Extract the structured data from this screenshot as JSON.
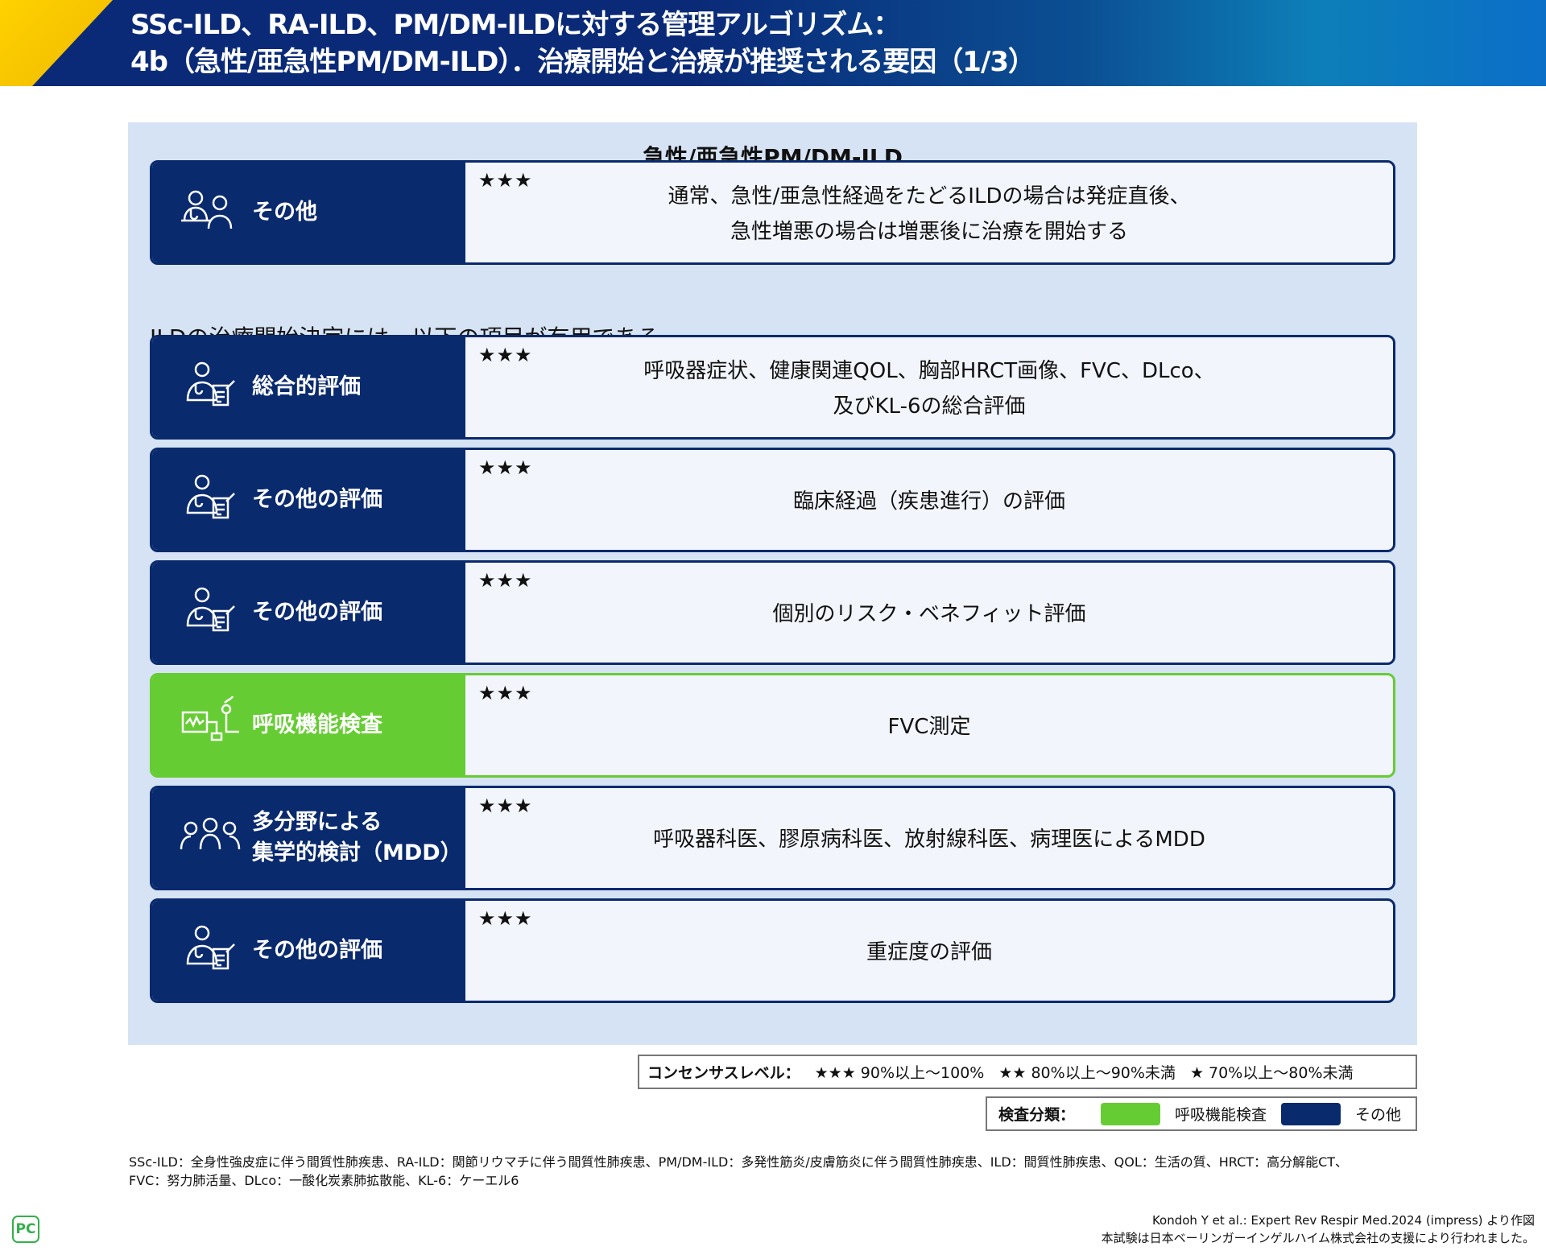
{
  "header": {
    "title_line1": "SSc-ILD、RA-ILD、PM/DM-ILDに対する管理アルゴリズム：",
    "title_line2": "4b（急性/亜急性PM/DM-ILD）．治療開始と治療が推奨される要因（1/3）"
  },
  "panel": {
    "title": "急性/亜急性PM/DM-ILD",
    "subtitle": "ILDの治療開始決定には、以下の項目が有用である"
  },
  "rows": [
    {
      "label": "その他",
      "stars": "★★★",
      "desc_line1": "通常、急性/亜急性経過をたどるILDの場合は発症直後、",
      "desc_line2": "急性増悪の場合は増悪後に治療を開始する",
      "icon": "doctor-patient-icon",
      "category": "other"
    },
    {
      "label": "総合的評価",
      "stars": "★★★",
      "desc_line1": "呼吸器症状、健康関連QOL、胸部HRCT画像、FVC、DLco、",
      "desc_line2": "及びKL-6の総合評価",
      "icon": "doctor-clipboard-icon",
      "category": "other"
    },
    {
      "label": "その他の評価",
      "stars": "★★★",
      "desc_line1": "臨床経過（疾患進行）の評価",
      "desc_line2": "",
      "icon": "doctor-clipboard-icon",
      "category": "other"
    },
    {
      "label": "その他の評価",
      "stars": "★★★",
      "desc_line1": "個別のリスク・ベネフィット評価",
      "desc_line2": "",
      "icon": "doctor-clipboard-icon",
      "category": "other"
    },
    {
      "label": "呼吸機能検査",
      "stars": "★★★",
      "desc_line1": "FVC測定",
      "desc_line2": "",
      "icon": "spirometer-icon",
      "category": "pulmonary-function"
    },
    {
      "label": "多分野による集学的検討（MDD）",
      "label_line1": "多分野による",
      "label_line2": "集学的検討（MDD）",
      "stars": "★★★",
      "desc_line1": "呼吸器科医、膠原病科医、放射線科医、病理医によるMDD",
      "desc_line2": "",
      "icon": "team-icon",
      "category": "other"
    },
    {
      "label": "その他の評価",
      "stars": "★★★",
      "desc_line1": "重症度の評価",
      "desc_line2": "",
      "icon": "doctor-clipboard-icon",
      "category": "other"
    }
  ],
  "legend_consensus": {
    "title": "コンセンサスレベル：",
    "l3_stars": "★★★",
    "l3": "90%以上～100%",
    "l2_stars": "★★",
    "l2": "80%以上～90%未満",
    "l1_stars": "★",
    "l1": "70%以上～80%未満"
  },
  "legend_category": {
    "title": "検査分類：",
    "green_label": "呼吸機能検査",
    "navy_label": "その他"
  },
  "colors": {
    "navy": "#0a2a6e",
    "green": "#66cc33",
    "panel": "#d6e3f4",
    "header": "#0a2a78",
    "accent_yellow": "#ffd200"
  },
  "footnote": {
    "line1": "SSc-ILD：全身性強皮症に伴う間質性肺疾患、RA-ILD：関節リウマチに伴う間質性肺疾患、PM/DM-ILD：多発性筋炎/皮膚筋炎に伴う間質性肺疾患、ILD：間質性肺疾患、QOL：生活の質、HRCT：高分解能CT、",
    "line2": "FVC：努力肺活量、DLco：一酸化炭素肺拡散能、KL-6：ケーエル6"
  },
  "citation": {
    "line1": "Kondoh Y et al.: Expert Rev Respir Med.2024 (impress) より作図",
    "line2": "本試験は日本ベーリンガーインゲルハイム株式会社の支援により行われました。"
  },
  "logo": "PC"
}
